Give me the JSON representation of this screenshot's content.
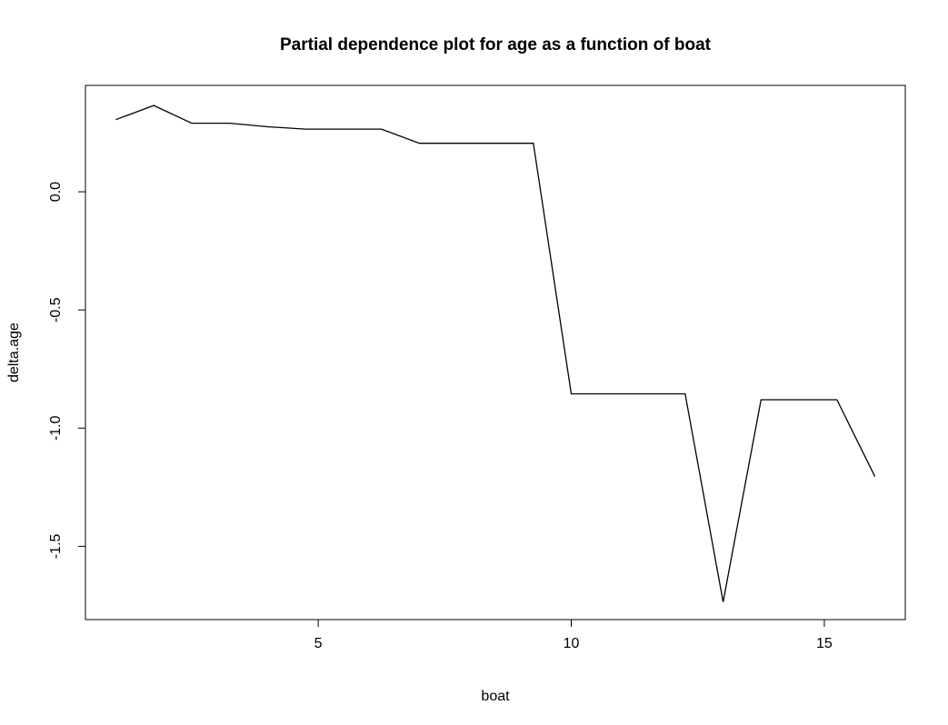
{
  "chart_data": {
    "type": "line",
    "title": "Partial dependence plot for age as a function of boat",
    "xlabel": "boat",
    "ylabel": "delta.age",
    "xlim": [
      0.4,
      16.6
    ],
    "ylim": [
      -1.81,
      0.45
    ],
    "x_ticks": [
      5,
      10,
      15
    ],
    "x_tick_labels": [
      "5",
      "10",
      "15"
    ],
    "y_ticks": [
      0.0,
      -0.5,
      -1.0,
      -1.5
    ],
    "y_tick_labels": [
      "0.0",
      "-0.5",
      "-1.0",
      "-1.5"
    ],
    "grid": false,
    "legend": "none",
    "series": [
      {
        "color": "#000000",
        "x": [
          1.0,
          1.75,
          2.5,
          3.25,
          4.0,
          4.75,
          5.5,
          6.25,
          7.0,
          7.75,
          8.5,
          9.25,
          10.0,
          10.75,
          11.5,
          12.25,
          13.0,
          13.75,
          14.5,
          15.25,
          16.0
        ],
        "y": [
          0.305,
          0.365,
          0.29,
          0.29,
          0.275,
          0.265,
          0.265,
          0.265,
          0.205,
          0.205,
          0.205,
          0.205,
          -0.855,
          -0.855,
          -0.855,
          -0.855,
          -1.735,
          -0.88,
          -0.88,
          -0.88,
          -1.205
        ]
      }
    ]
  }
}
